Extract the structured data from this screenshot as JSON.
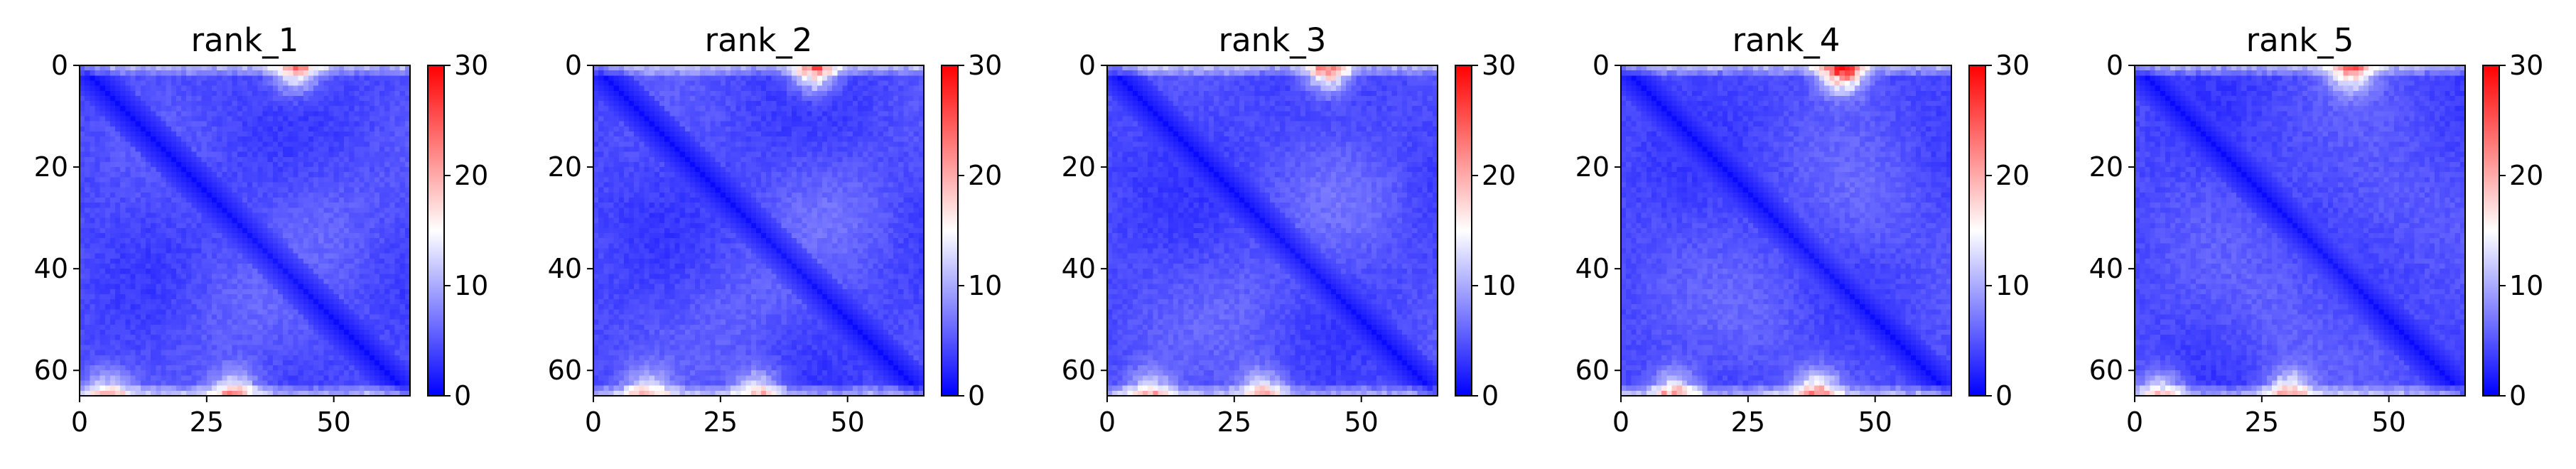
{
  "chart_data": [
    {
      "type": "heatmap",
      "title": "rank_1",
      "x_ticks": [
        0,
        25,
        50
      ],
      "y_ticks": [
        0,
        20,
        40,
        60
      ],
      "xlim": [
        0,
        65
      ],
      "ylim": [
        65,
        0
      ],
      "colorbar": {
        "ticks": [
          0,
          10,
          20,
          30
        ],
        "range": [
          0,
          30
        ],
        "colormap": "bwr"
      },
      "matrix_size": 65,
      "hotspots": [
        {
          "x": 42,
          "y": 0,
          "value": 17
        },
        {
          "x": 30,
          "y": 64,
          "value": 16
        },
        {
          "x": 5,
          "y": 64,
          "value": 14
        }
      ]
    },
    {
      "type": "heatmap",
      "title": "rank_2",
      "x_ticks": [
        0,
        25,
        50
      ],
      "y_ticks": [
        0,
        20,
        40,
        60
      ],
      "xlim": [
        0,
        65
      ],
      "ylim": [
        65,
        0
      ],
      "colorbar": {
        "ticks": [
          0,
          10,
          20,
          30
        ],
        "range": [
          0,
          30
        ],
        "colormap": "bwr"
      },
      "matrix_size": 65,
      "hotspots": [
        {
          "x": 43,
          "y": 0,
          "value": 20
        },
        {
          "x": 32,
          "y": 64,
          "value": 15
        },
        {
          "x": 10,
          "y": 64,
          "value": 14
        }
      ]
    },
    {
      "type": "heatmap",
      "title": "rank_3",
      "x_ticks": [
        0,
        25,
        50
      ],
      "y_ticks": [
        0,
        20,
        40,
        60
      ],
      "xlim": [
        0,
        65
      ],
      "ylim": [
        65,
        0
      ],
      "colorbar": {
        "ticks": [
          0,
          10,
          20,
          30
        ],
        "range": [
          0,
          30
        ],
        "colormap": "bwr"
      },
      "matrix_size": 65,
      "hotspots": [
        {
          "x": 43,
          "y": 0,
          "value": 20
        },
        {
          "x": 30,
          "y": 64,
          "value": 15
        },
        {
          "x": 8,
          "y": 64,
          "value": 14
        }
      ]
    },
    {
      "type": "heatmap",
      "title": "rank_4",
      "x_ticks": [
        0,
        25,
        50
      ],
      "y_ticks": [
        0,
        20,
        40,
        60
      ],
      "xlim": [
        0,
        65
      ],
      "ylim": [
        65,
        0
      ],
      "colorbar": {
        "ticks": [
          0,
          10,
          20,
          30
        ],
        "range": [
          0,
          30
        ],
        "colormap": "bwr"
      },
      "matrix_size": 65,
      "hotspots": [
        {
          "x": 43,
          "y": 0,
          "value": 25
        },
        {
          "x": 38,
          "y": 64,
          "value": 17
        },
        {
          "x": 10,
          "y": 64,
          "value": 16
        }
      ]
    },
    {
      "type": "heatmap",
      "title": "rank_5",
      "x_ticks": [
        0,
        25,
        50
      ],
      "y_ticks": [
        0,
        20,
        40,
        60
      ],
      "xlim": [
        0,
        65
      ],
      "ylim": [
        65,
        0
      ],
      "colorbar": {
        "ticks": [
          0,
          10,
          20,
          30
        ],
        "range": [
          0,
          30
        ],
        "colormap": "bwr"
      },
      "matrix_size": 65,
      "hotspots": [
        {
          "x": 42,
          "y": 0,
          "value": 18
        },
        {
          "x": 30,
          "y": 64,
          "value": 16
        },
        {
          "x": 5,
          "y": 64,
          "value": 14
        }
      ]
    }
  ],
  "colors": {
    "low": "#0000ff",
    "mid": "#ffffff",
    "high": "#ff0000"
  }
}
